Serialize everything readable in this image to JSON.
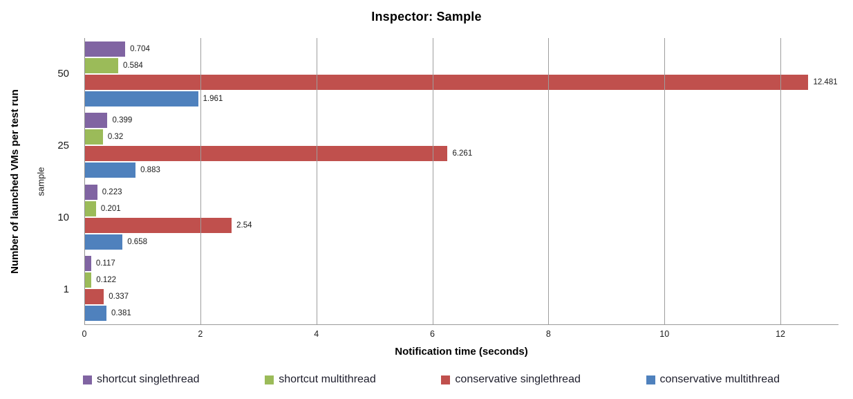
{
  "chart_data": {
    "type": "bar",
    "orientation": "horizontal",
    "title": "Inspector: Sample",
    "xlabel": "Notification time (seconds)",
    "ylabel": "Number of launched VMs per test run",
    "ylabel_inner": "sample",
    "categories": [
      "50",
      "25",
      "10",
      "1"
    ],
    "series": [
      {
        "name": "shortcut singlethread",
        "color": "#8064A2",
        "values": [
          0.704,
          0.399,
          0.223,
          0.117
        ],
        "labels": [
          "0.704",
          "0.399",
          "0.223",
          "0.117"
        ]
      },
      {
        "name": "shortcut multithread",
        "color": "#9BBB59",
        "values": [
          0.584,
          0.32,
          0.201,
          0.122
        ],
        "labels": [
          "0.584",
          "0.32",
          "0.201",
          "0.122"
        ]
      },
      {
        "name": "conservative singlethread",
        "color": "#C0504D",
        "values": [
          12.481,
          6.261,
          2.54,
          0.337
        ],
        "labels": [
          "12.481",
          "6.261",
          "2.54",
          "0.337"
        ]
      },
      {
        "name": "conservative multithread",
        "color": "#4F81BD",
        "values": [
          1.961,
          0.883,
          0.658,
          0.381
        ],
        "labels": [
          "1.961",
          "0.883",
          "0.658",
          "0.381"
        ]
      }
    ],
    "xlim": [
      0,
      13
    ],
    "xticks": [
      0,
      2,
      4,
      6,
      8,
      10,
      12
    ],
    "grid": "vertical",
    "gridline_color": "#9d9d9d",
    "legend_position": "bottom"
  }
}
